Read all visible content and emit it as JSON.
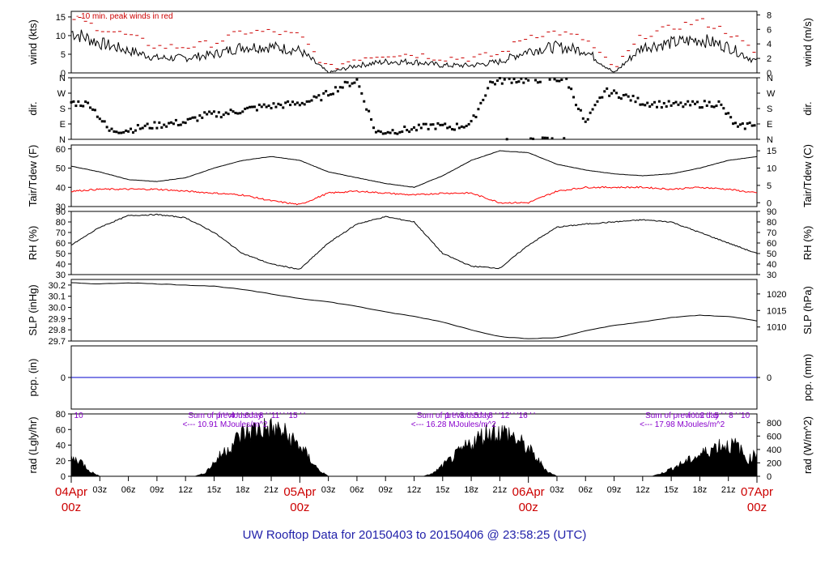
{
  "title": "UW Rooftop Data for 20150403  to  20150406 @ 23:58:25  (UTC)",
  "colors": {
    "temp": "#000000",
    "dewpoint": "#ff0000",
    "precip": "#0000cc",
    "peak": "#cc0000",
    "note": "#8800cc",
    "daylabel": "#cc0000",
    "title": "#2222aa"
  },
  "x_axis": {
    "ticks": [
      "03z",
      "06z",
      "09z",
      "12z",
      "15z",
      "18z",
      "21z",
      "03z",
      "06z",
      "09z",
      "12z",
      "15z",
      "18z",
      "21z",
      "03z",
      "06z",
      "09z",
      "12z",
      "15z",
      "18z",
      "21z"
    ],
    "day_labels": [
      {
        "date": "04Apr",
        "hour": "00z"
      },
      {
        "date": "05Apr",
        "hour": "00z"
      },
      {
        "date": "06Apr",
        "hour": "00z"
      },
      {
        "date": "07Apr",
        "hour": "00z"
      }
    ]
  },
  "panels": {
    "wind": {
      "left_label": "wind (kts)",
      "right_label": "wind (m/s)",
      "left_ticks": [
        "0",
        "5",
        "10",
        "15"
      ],
      "right_ticks": [
        "0",
        "2",
        "4",
        "6",
        "8"
      ],
      "note": "10 min. peak winds in red"
    },
    "dir": {
      "left_label": "dir.",
      "right_label": "dir.",
      "ticks": [
        "N",
        "E",
        "S",
        "W",
        "N"
      ]
    },
    "temp": {
      "left_label": "Tair/Tdew (F)",
      "right_label": "Tair/Tdew (C)",
      "left_ticks": [
        "30",
        "40",
        "50",
        "60"
      ],
      "right_ticks": [
        "0",
        "5",
        "10",
        "15"
      ]
    },
    "rh": {
      "left_label": "RH (%)",
      "right_label": "RH (%)",
      "ticks": [
        "30",
        "40",
        "50",
        "60",
        "70",
        "80",
        "90"
      ]
    },
    "slp": {
      "left_label": "SLP (inHg)",
      "right_label": "SLP (hPa)",
      "left_ticks": [
        "29.7",
        "29.8",
        "29.9",
        "30.0",
        "30.1",
        "30.2"
      ],
      "right_ticks": [
        "1010",
        "1015",
        "1020"
      ]
    },
    "pcp": {
      "left_label": "pcp. (in)",
      "right_label": "pcp. (mm)",
      "left_ticks": [
        "0"
      ],
      "right_ticks": [
        "0"
      ]
    },
    "rad": {
      "left_label": "rad (Lgly/hr)",
      "right_label": "rad (W/m^2)",
      "left_ticks": [
        "0",
        "20",
        "40",
        "60",
        "80"
      ],
      "right_ticks": [
        "0",
        "200",
        "400",
        "600",
        "800"
      ],
      "sum_header": "Sum of previous day",
      "sums": [
        "<--- 10.91 MJoules/m^2",
        "<--- 16.28 MJoules/m^2",
        "<--- 17.98 MJoules/m^2"
      ],
      "hour_marks": [
        {
          "day": 0,
          "text": "10"
        },
        {
          "day": 0,
          "text": "f ' ' 4 ' ' 6 ' ' 8 ' '11' ' '15 ' '"
        },
        {
          "day": 1,
          "text": "1 ' ' 3 ' ' 5 ' ' 8 ' '12' ' '16 ' '"
        },
        {
          "day": 2,
          "text": "f ' ' 2 ' ' 5 ' ' 8 ' '10"
        }
      ]
    }
  },
  "chart_data": [
    {
      "type": "line",
      "panel": "wind",
      "ylabel": "wind (kts)",
      "ylim": [
        0,
        16.5
      ],
      "x_hours": [
        0,
        3,
        6,
        9,
        12,
        15,
        18,
        21,
        24,
        27,
        30,
        33,
        36,
        39,
        42,
        45,
        48,
        51,
        54,
        57,
        60,
        63,
        66,
        69,
        72
      ],
      "series": [
        {
          "name": "wind",
          "values": [
            11,
            8,
            6,
            4,
            4,
            5,
            7,
            7,
            6,
            0,
            2,
            3,
            3,
            2,
            2,
            3,
            6,
            7,
            6,
            0,
            7,
            8,
            9,
            7,
            3
          ]
        },
        {
          "name": "10 min. peak winds",
          "values": [
            15,
            12,
            10,
            7,
            7,
            8,
            11,
            11,
            10,
            1,
            4,
            5,
            5,
            4,
            4,
            5,
            10,
            11,
            9,
            1,
            10,
            12,
            14,
            11,
            5
          ]
        }
      ]
    },
    {
      "type": "scatter",
      "panel": "dir",
      "ylabel": "dir.",
      "ylim": [
        0,
        360
      ],
      "x_hours": [
        0,
        2,
        4,
        6,
        8,
        10,
        12,
        14,
        16,
        18,
        20,
        22,
        24,
        26,
        28,
        30,
        32,
        34,
        36,
        38,
        40,
        42,
        44,
        46,
        48,
        50,
        52,
        54,
        56,
        58,
        60,
        62,
        64,
        66,
        68,
        70,
        72
      ],
      "series": [
        {
          "name": "dir",
          "values": [
            215,
            205,
            50,
            55,
            75,
            90,
            100,
            140,
            150,
            170,
            190,
            200,
            210,
            240,
            300,
            345,
            40,
            50,
            60,
            80,
            70,
            90,
            330,
            350,
            345,
            355,
            350,
            90,
            280,
            255,
            215,
            205,
            200,
            205,
            210,
            65,
            100
          ]
        }
      ]
    },
    {
      "type": "line",
      "panel": "temp",
      "ylabel": "Tair/Tdew (F)",
      "ylim": [
        30,
        62
      ],
      "x_hours": [
        0,
        3,
        6,
        9,
        12,
        15,
        18,
        21,
        24,
        27,
        30,
        33,
        36,
        39,
        42,
        45,
        48,
        51,
        54,
        57,
        60,
        63,
        66,
        69,
        72
      ],
      "series": [
        {
          "name": "Tair",
          "values": [
            51,
            48,
            44,
            43,
            45,
            50,
            54,
            56,
            54,
            48,
            45,
            42,
            40,
            46,
            54,
            59,
            58,
            52,
            49,
            47,
            46,
            47,
            50,
            54,
            56
          ]
        },
        {
          "name": "Tdew",
          "values": [
            38,
            39,
            39,
            39,
            38,
            37,
            36,
            33,
            31,
            37,
            38,
            37,
            36,
            37,
            37,
            32,
            32,
            38,
            40,
            40,
            40,
            39,
            40,
            39,
            37
          ]
        }
      ]
    },
    {
      "type": "line",
      "panel": "rh",
      "ylabel": "RH (%)",
      "ylim": [
        30,
        90
      ],
      "x_hours": [
        0,
        3,
        6,
        9,
        12,
        15,
        18,
        21,
        24,
        27,
        30,
        33,
        36,
        39,
        42,
        45,
        48,
        51,
        54,
        57,
        60,
        63,
        66,
        69,
        72
      ],
      "series": [
        {
          "name": "RH",
          "values": [
            58,
            75,
            86,
            87,
            84,
            70,
            50,
            40,
            35,
            60,
            78,
            85,
            80,
            50,
            38,
            36,
            58,
            75,
            78,
            80,
            82,
            80,
            70,
            60,
            50
          ]
        }
      ]
    },
    {
      "type": "line",
      "panel": "slp",
      "ylabel": "SLP (inHg)",
      "ylim": [
        29.7,
        30.25
      ],
      "x_hours": [
        0,
        3,
        6,
        9,
        12,
        15,
        18,
        21,
        24,
        27,
        30,
        33,
        36,
        39,
        42,
        45,
        48,
        51,
        54,
        57,
        60,
        63,
        66,
        69,
        72
      ],
      "series": [
        {
          "name": "SLP",
          "values": [
            30.22,
            30.21,
            30.22,
            30.21,
            30.2,
            30.19,
            30.16,
            30.12,
            30.08,
            30.05,
            30.01,
            29.96,
            29.92,
            29.87,
            29.8,
            29.74,
            29.72,
            29.73,
            29.79,
            29.84,
            29.87,
            29.91,
            29.93,
            29.92,
            29.88
          ]
        }
      ]
    },
    {
      "type": "line",
      "panel": "pcp",
      "ylabel": "pcp. (in)",
      "x_hours": [
        0,
        72
      ],
      "series": [
        {
          "name": "pcp",
          "values": [
            0,
            0
          ]
        }
      ]
    },
    {
      "type": "area",
      "panel": "rad",
      "ylabel": "rad (Lgly/hr)",
      "ylim": [
        0,
        80
      ],
      "x_hours": [
        0,
        1,
        2,
        3,
        13,
        14,
        16,
        18,
        20,
        22,
        24,
        26,
        27,
        37,
        38,
        40,
        42,
        44,
        46,
        48,
        50,
        51,
        61,
        62,
        64,
        66,
        68,
        70,
        71,
        72
      ],
      "series": [
        {
          "name": "rad",
          "values": [
            30,
            25,
            8,
            0,
            0,
            5,
            40,
            70,
            80,
            75,
            50,
            10,
            0,
            0,
            5,
            30,
            55,
            75,
            70,
            45,
            8,
            0,
            0,
            5,
            20,
            35,
            52,
            50,
            25,
            40
          ]
        }
      ]
    }
  ]
}
